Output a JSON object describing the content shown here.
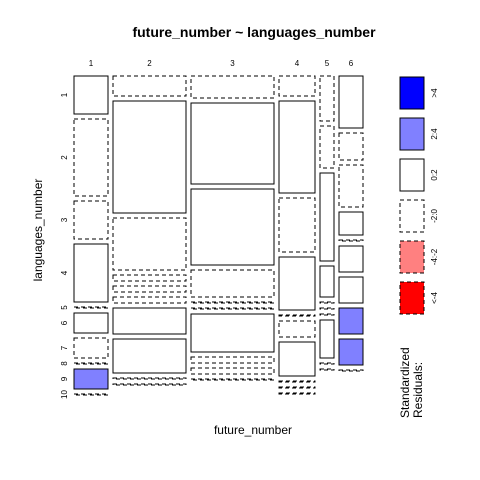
{
  "chart_data": {
    "type": "mosaic",
    "title": "future_number ~ languages_number",
    "xlabel": "future_number",
    "ylabel": "languages_number",
    "columns": [
      "1",
      "2",
      "3",
      "4",
      "5",
      "6"
    ],
    "rows": [
      "1",
      "2",
      "3",
      "4",
      "5",
      "6",
      "7",
      "8",
      "9",
      "10"
    ],
    "legend": {
      "title_lines": [
        "Standardized",
        "Residuals:"
      ],
      "entries": [
        {
          "label": ">4",
          "color": "#0000ff",
          "border": "solid"
        },
        {
          "label": "2:4",
          "color": "#8080ff",
          "border": "solid"
        },
        {
          "label": "0:2",
          "color": "#ffffff",
          "border": "solid"
        },
        {
          "label": "-2:0",
          "color": "#ffffff",
          "border": "dashed"
        },
        {
          "label": "-4:-2",
          "color": "#ff8080",
          "border": "dashed"
        },
        {
          "label": "<-4",
          "color": "#ff0000",
          "border": "dashed"
        }
      ]
    },
    "colors": {
      "blue": "#0000ff",
      "light_blue": "#8080ff",
      "white": "#ffffff",
      "light_red": "#ff8080",
      "red": "#ff0000"
    },
    "column_widths": [
      34,
      73,
      83,
      36,
      14,
      24
    ],
    "cell_heights": [
      [
        38,
        77,
        38,
        58,
        1,
        20,
        20,
        1,
        20,
        1
      ],
      [
        20,
        112,
        52,
        6,
        6,
        6,
        26,
        34,
        1,
        1
      ],
      [
        22,
        81,
        76,
        27,
        1,
        1,
        38,
        6,
        6,
        1
      ],
      [
        20,
        92,
        54,
        53,
        1,
        16,
        34,
        1,
        1,
        1
      ],
      [
        45,
        42,
        88,
        31,
        1,
        1,
        1,
        38,
        1,
        1
      ],
      [
        52,
        27,
        42,
        23,
        1,
        26,
        26,
        26,
        26,
        1
      ]
    ],
    "cell_styles": [
      [
        "0:2",
        "-2:0",
        "-2:0",
        "0:2",
        "-2:0",
        "0:2",
        "-2:0",
        "-2:0",
        "2:4",
        "-2:0"
      ],
      [
        "-2:0",
        "0:2",
        "-2:0",
        "-2:0",
        "-2:0",
        "-2:0",
        "0:2",
        "0:2",
        "-2:0",
        "-2:0"
      ],
      [
        "-2:0",
        "0:2",
        "0:2",
        "-2:0",
        "-2:0",
        "-2:0",
        "0:2",
        "-2:0",
        "-2:0",
        "-2:0"
      ],
      [
        "-2:0",
        "0:2",
        "-2:0",
        "0:2",
        "-2:0",
        "-2:0",
        "0:2",
        "-2:0",
        "-2:0",
        "-2:0"
      ],
      [
        "-2:0",
        "-2:0",
        "0:2",
        "0:2",
        "-2:0",
        "-2:0",
        "-2:0",
        "0:2",
        "-2:0",
        "-2:0"
      ],
      [
        "0:2",
        "-2:0",
        "-2:0",
        "0:2",
        "-2:0",
        "0:2",
        "0:2",
        "2:4",
        "2:4",
        "-2:0"
      ]
    ]
  }
}
